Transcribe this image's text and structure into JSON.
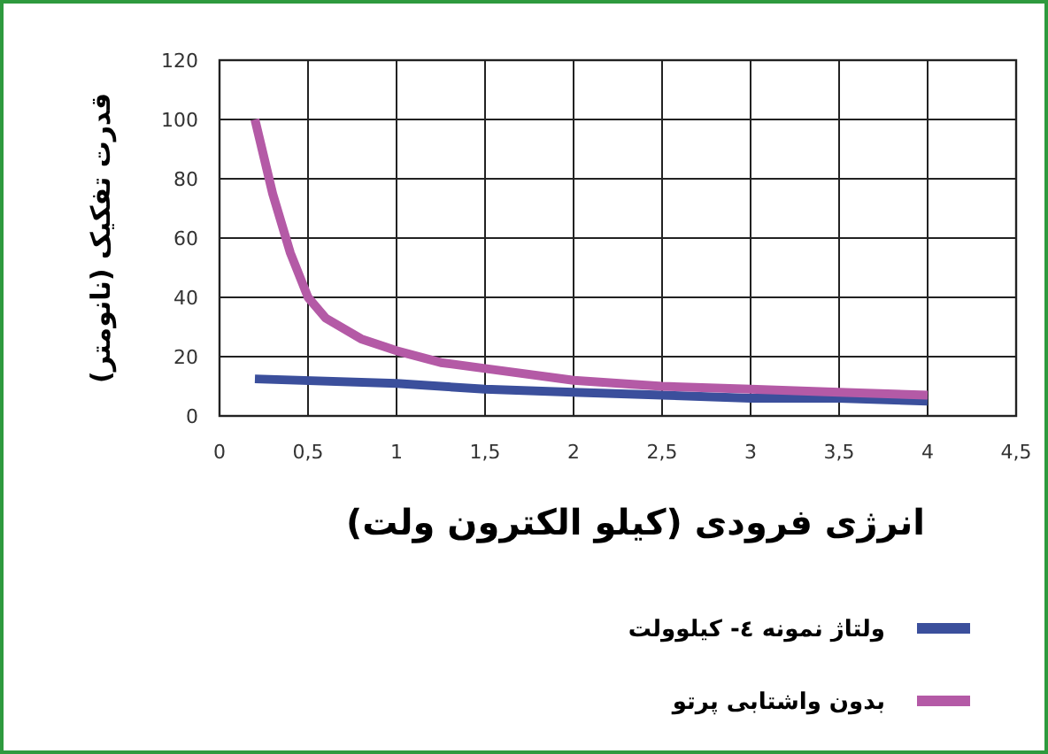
{
  "chart_data": {
    "type": "line",
    "xlabel": "انرژی فرودی (کیلو الکترون ولت)",
    "ylabel": "قدرت تفکیک (نانومتر)",
    "xlim": [
      0,
      4.5
    ],
    "ylim": [
      0,
      120
    ],
    "xticks": [
      0,
      {
        "value": 0.5,
        "label": "0,5"
      },
      1,
      {
        "value": 1.5,
        "label": "1,5"
      },
      2,
      {
        "value": 2.5,
        "label": "2,5"
      },
      3,
      {
        "value": 3.5,
        "label": "3,5"
      },
      4,
      {
        "value": 4.5,
        "label": "4,5"
      }
    ],
    "yticks": [
      0,
      20,
      40,
      60,
      80,
      100,
      120
    ],
    "grid": true,
    "legend": "bottom",
    "line_style": "solid",
    "marker": "none",
    "series": [
      {
        "name": "ولتاژ نمونه ٤- کیلوولت",
        "color": "#3b4f9c",
        "x": [
          0.2,
          1,
          1.5,
          2,
          2.5,
          3,
          3.5,
          4
        ],
        "values": [
          12.5,
          11,
          9,
          8,
          7,
          6,
          6,
          5
        ]
      },
      {
        "name": "بدون واشتابی پرتو",
        "color": "#b45aa6",
        "x": [
          0.2,
          0.3,
          0.4,
          0.5,
          0.6,
          0.8,
          1,
          1.25,
          1.5,
          2,
          2.5,
          3,
          3.5,
          4
        ],
        "values": [
          100,
          75,
          55,
          40,
          33,
          26,
          22,
          18,
          16,
          12,
          10,
          9,
          8,
          7
        ]
      }
    ]
  }
}
